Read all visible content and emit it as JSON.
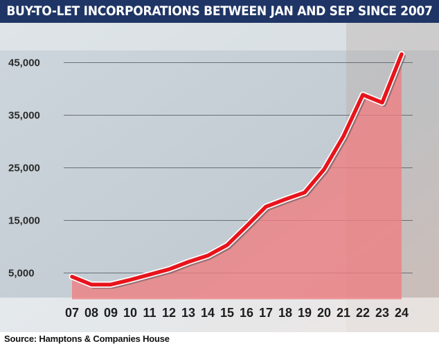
{
  "chart_data": {
    "type": "line",
    "title": "BUY-TO-LET INCORPORATIONS BETWEEN JAN AND SEP SINCE 2007",
    "x": [
      "07",
      "08",
      "09",
      "10",
      "11",
      "12",
      "13",
      "14",
      "15",
      "16",
      "17",
      "18",
      "19",
      "20",
      "21",
      "22",
      "23",
      "24"
    ],
    "series": [
      {
        "values": [
          4300,
          2800,
          2800,
          3700,
          4700,
          5700,
          7100,
          8300,
          10300,
          13900,
          17600,
          19000,
          20300,
          24700,
          31000,
          38900,
          37400,
          46600
        ]
      }
    ],
    "yticks": [
      "5,000",
      "15,000",
      "25,000",
      "35,000",
      "45,000"
    ],
    "ytick_values": [
      5000,
      15000,
      25000,
      35000,
      45000
    ],
    "ylim": [
      0,
      48000
    ],
    "grid": true,
    "xlabel": "",
    "ylabel": "",
    "line_color": "#e8141c",
    "area_color": "#f07d82"
  },
  "source": "Source: Hamptons & Companies House"
}
